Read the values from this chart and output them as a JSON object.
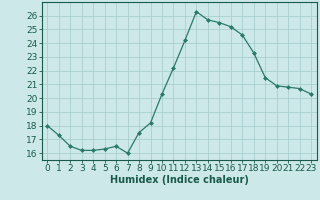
{
  "x": [
    0,
    1,
    2,
    3,
    4,
    5,
    6,
    7,
    8,
    9,
    10,
    11,
    12,
    13,
    14,
    15,
    16,
    17,
    18,
    19,
    20,
    21,
    22,
    23
  ],
  "y": [
    18.0,
    17.3,
    16.5,
    16.2,
    16.2,
    16.3,
    16.5,
    16.0,
    17.5,
    18.2,
    20.3,
    22.2,
    24.2,
    26.3,
    25.7,
    25.5,
    25.2,
    24.6,
    23.3,
    21.5,
    20.9,
    20.8,
    20.7,
    20.3
  ],
  "line_color": "#2a7a6a",
  "marker": "D",
  "marker_size": 2.0,
  "bg_color": "#cce8e8",
  "grid_color": "#aacece",
  "xlabel": "Humidex (Indice chaleur)",
  "ylim": [
    15.5,
    27.0
  ],
  "xlim": [
    -0.5,
    23.5
  ],
  "yticks": [
    16,
    17,
    18,
    19,
    20,
    21,
    22,
    23,
    24,
    25,
    26
  ],
  "xticks": [
    0,
    1,
    2,
    3,
    4,
    5,
    6,
    7,
    8,
    9,
    10,
    11,
    12,
    13,
    14,
    15,
    16,
    17,
    18,
    19,
    20,
    21,
    22,
    23
  ],
  "tick_color": "#1a5a4a",
  "xlabel_fontsize": 7,
  "tick_fontsize": 6.5
}
